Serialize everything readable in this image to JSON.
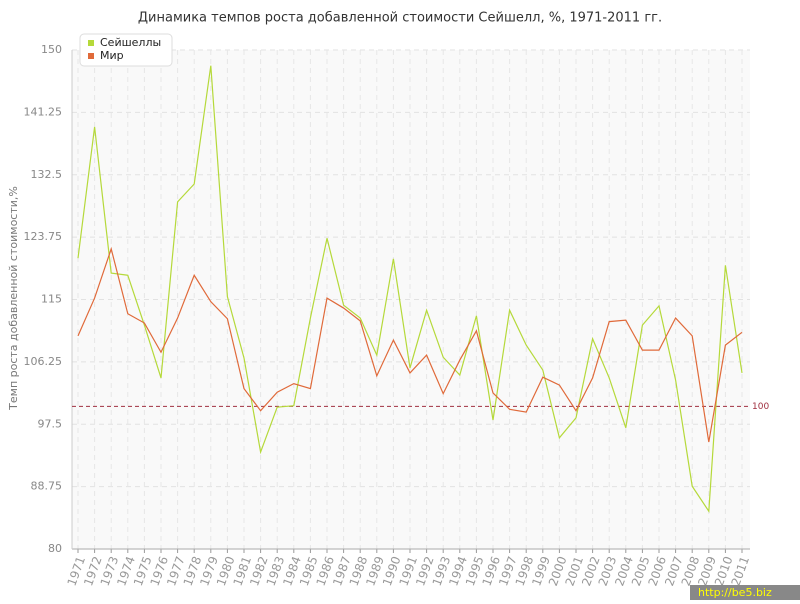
{
  "chart_data": {
    "type": "line",
    "title": "Динамика темпов роста добавленной стоимости Сейшелл, %, 1971-2011 гг.",
    "y_label": "Темп роста добавленной стоимости,%",
    "categories": [
      "1971",
      "1972",
      "1973",
      "1974",
      "1975",
      "1976",
      "1977",
      "1978",
      "1979",
      "1980",
      "1981",
      "1982",
      "1983",
      "1984",
      "1985",
      "1986",
      "1987",
      "1988",
      "1989",
      "1990",
      "1991",
      "1992",
      "1993",
      "1994",
      "1995",
      "1996",
      "1997",
      "1998",
      "1999",
      "2000",
      "2001",
      "2002",
      "2003",
      "2004",
      "2005",
      "2006",
      "2007",
      "2008",
      "2009",
      "2010",
      "2011"
    ],
    "series": [
      {
        "name": "Сейшеллы",
        "color": "#b5d93a",
        "values": [
          120.8,
          139.2,
          118.7,
          118.4,
          111.4,
          104.0,
          128.7,
          131.2,
          147.8,
          115.4,
          106.8,
          93.6,
          99.9,
          100.1,
          112.4,
          123.6,
          114.2,
          112.4,
          107.2,
          120.7,
          105.4,
          113.5,
          106.9,
          104.4,
          112.7,
          98.1,
          113.5,
          108.6,
          105.1,
          95.6,
          98.4,
          109.5,
          104.0,
          97.0,
          111.4,
          114.1,
          103.7,
          88.8,
          85.3,
          119.8,
          104.7
        ]
      },
      {
        "name": "Мир",
        "color": "#e06a3a",
        "values": [
          109.9,
          115.2,
          122.1,
          113.0,
          111.7,
          107.6,
          112.4,
          118.4,
          114.7,
          112.3,
          102.5,
          99.4,
          102.0,
          103.2,
          102.5,
          115.2,
          113.8,
          112.0,
          104.3,
          109.3,
          104.7,
          107.2,
          101.8,
          106.5,
          110.6,
          101.9,
          99.6,
          99.2,
          104.1,
          103.0,
          99.4,
          104.0,
          111.9,
          112.1,
          107.9,
          107.9,
          112.4,
          109.9,
          95.0,
          108.6,
          110.4
        ]
      }
    ],
    "ylim": [
      80,
      150
    ],
    "yticks": [
      80,
      88.75,
      97.5,
      106.25,
      115,
      123.75,
      132.5,
      141.25,
      150
    ],
    "reference_line": 100,
    "reference_color": "#a03040",
    "grid": true,
    "legend": "top-left",
    "watermark": "http://be5.biz"
  }
}
